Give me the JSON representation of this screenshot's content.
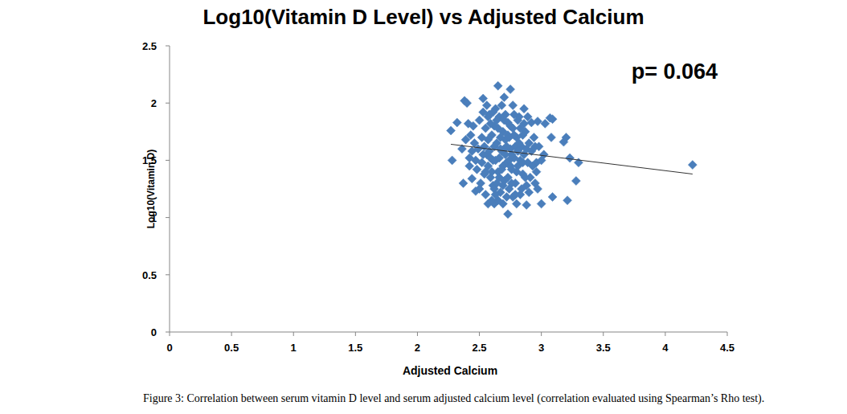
{
  "chart_data": {
    "type": "scatter",
    "title": "Log10(Vitamin D Level) vs Adjusted Calcium",
    "x_label": "Adjusted Calcium",
    "y_label": "Log10(Vitamin D)",
    "annotation": "p= 0.064",
    "caption": "Figure 3: Correlation between serum vitamin D level and serum adjusted calcium level (correlation evaluated using Spearman’s Rho test).",
    "color": "#4a7ebb",
    "marker": "diamond",
    "grid": false,
    "xlim": [
      0,
      4.5
    ],
    "ylim": [
      0,
      2.5
    ],
    "xticks": [
      0,
      0.5,
      1,
      1.5,
      2,
      2.5,
      3,
      3.5,
      4,
      4.5
    ],
    "yticks": [
      0,
      0.5,
      1,
      1.5,
      2,
      2.5
    ],
    "x": [
      2.27,
      2.28,
      2.32,
      2.38,
      2.4,
      2.36,
      2.37,
      2.42,
      2.44,
      2.47,
      2.53,
      2.65,
      2.7,
      2.75,
      2.73,
      2.62,
      2.57,
      2.86,
      2.92,
      2.97,
      3.03,
      3.07,
      3.09,
      3.08,
      3.18,
      3.2,
      3.23,
      3.3,
      3.28,
      3.21,
      3.09,
      3.0,
      2.95,
      4.22,
      2.96,
      3.02,
      2.88,
      2.8,
      2.69,
      2.5,
      2.52,
      2.54,
      2.55,
      2.56,
      2.57,
      2.58,
      2.59,
      2.6,
      2.61,
      2.62,
      2.63,
      2.64,
      2.65,
      2.66,
      2.67,
      2.68,
      2.69,
      2.7,
      2.71,
      2.72,
      2.73,
      2.74,
      2.75,
      2.76,
      2.77,
      2.78,
      2.79,
      2.8,
      2.81,
      2.82,
      2.83,
      2.84,
      2.85,
      2.86,
      2.87,
      2.88,
      2.89,
      2.9,
      2.91,
      2.48,
      2.49,
      2.51,
      2.53,
      2.55,
      2.57,
      2.59,
      2.61,
      2.63,
      2.65,
      2.67,
      2.69,
      2.71,
      2.73,
      2.75,
      2.77,
      2.79,
      2.81,
      2.83,
      2.85,
      2.45,
      2.46,
      2.47,
      2.5,
      2.52,
      2.54,
      2.56,
      2.58,
      2.6,
      2.62,
      2.64,
      2.66,
      2.68,
      2.7,
      2.72,
      2.74,
      2.76,
      2.78,
      2.8,
      2.82,
      2.84,
      2.86,
      2.88,
      2.9,
      2.92,
      2.94,
      2.96,
      2.98,
      3.0,
      2.43,
      2.44,
      2.41,
      2.39,
      2.42,
      2.6,
      2.62,
      2.64,
      2.66,
      2.68,
      2.7,
      2.72,
      2.74,
      2.76,
      2.78,
      2.53,
      2.55,
      2.57,
      2.59,
      2.61,
      2.63,
      2.65,
      2.67,
      2.69,
      2.71,
      2.73,
      2.75,
      2.77,
      2.79,
      2.81,
      2.83,
      2.85,
      2.87,
      2.89,
      2.93,
      2.95,
      2.97
    ],
    "values": [
      1.76,
      1.5,
      1.83,
      2.02,
      2.0,
      1.6,
      1.3,
      1.52,
      1.34,
      1.23,
      2.04,
      2.15,
      2.05,
      2.12,
      1.03,
      1.12,
      1.12,
      1.95,
      1.83,
      1.84,
      1.82,
      1.87,
      1.86,
      1.7,
      1.66,
      1.7,
      1.52,
      1.48,
      1.32,
      1.15,
      1.18,
      1.12,
      1.3,
      1.46,
      1.48,
      1.55,
      1.11,
      1.12,
      1.12,
      1.85,
      1.7,
      1.62,
      1.78,
      1.55,
      1.45,
      1.9,
      1.35,
      1.72,
      1.28,
      1.8,
      1.5,
      1.65,
      1.4,
      1.88,
      1.22,
      1.58,
      1.75,
      1.32,
      1.68,
      1.48,
      1.83,
      1.25,
      1.6,
      1.42,
      1.78,
      1.52,
      1.3,
      1.7,
      1.45,
      1.88,
      1.2,
      1.62,
      1.38,
      1.55,
      1.75,
      1.28,
      1.48,
      1.65,
      1.35,
      1.42,
      1.6,
      1.3,
      1.92,
      1.2,
      1.68,
      1.82,
      1.5,
      1.95,
      1.15,
      1.7,
      1.45,
      1.9,
      1.35,
      1.8,
      1.18,
      1.62,
      1.85,
      1.5,
      1.72,
      1.8,
      1.65,
      1.5,
      1.25,
      1.48,
      1.38,
      1.98,
      1.58,
      1.4,
      1.62,
      1.3,
      1.52,
      1.98,
      1.6,
      1.18,
      1.7,
      1.55,
      1.9,
      1.4,
      1.65,
      1.25,
      1.82,
      1.6,
      1.22,
      1.58,
      1.7,
      1.4,
      1.62,
      1.5,
      1.72,
      1.58,
      1.82,
      1.68,
      1.45,
      1.15,
      1.25,
      1.85,
      1.35,
      1.42,
      1.85,
      1.62,
      1.5,
      1.3,
      1.72,
      1.55,
      1.4,
      1.88,
      1.52,
      1.92,
      1.2,
      1.78,
      1.6,
      1.28,
      1.55,
      1.72,
      1.45,
      1.98,
      1.2,
      1.58,
      1.78,
      1.48,
      1.35,
      1.88,
      1.45,
      1.62,
      1.25
    ],
    "trendline": {
      "x": [
        2.27,
        4.22
      ],
      "values": [
        1.64,
        1.38
      ]
    }
  }
}
